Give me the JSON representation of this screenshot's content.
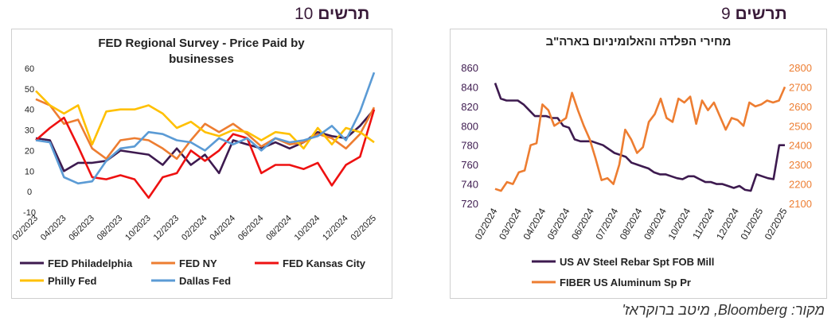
{
  "page": {
    "left_number": "10",
    "left_label": "תרשים",
    "right_number": "9",
    "right_label": "תרשים",
    "source": "מקור: Bloomberg, מיטב ברוקראז'"
  },
  "colors": {
    "philadelphia": "#3d1a4f",
    "ny": "#ed7d31",
    "kansas": "#ee1111",
    "philly": "#ffc000",
    "dallas": "#5b9bd5",
    "steel": "#3d1a4f",
    "aluminum": "#ed7d31",
    "axis_left": "#3d1a4f",
    "axis_right": "#ed7d31"
  },
  "chart_data": [
    {
      "type": "line",
      "title": "FED Regional Survey - Price Paid by businesses",
      "title_lines": [
        "FED Regional Survey - Price Paid by",
        "businesses"
      ],
      "ylim": [
        -10,
        60
      ],
      "yticks": [
        -10,
        0,
        10,
        20,
        30,
        40,
        50,
        60
      ],
      "grid": false,
      "legend_position": "bottom",
      "x_tick_labels": [
        "02/2023",
        "04/2023",
        "06/2023",
        "08/2023",
        "10/2023",
        "12/2023",
        "02/2024",
        "04/2024",
        "06/2024",
        "08/2024",
        "10/2024",
        "12/2024",
        "02/2025"
      ],
      "x": [
        "02/2023",
        "03/2023",
        "04/2023",
        "05/2023",
        "06/2023",
        "07/2023",
        "08/2023",
        "09/2023",
        "10/2023",
        "11/2023",
        "12/2023",
        "01/2024",
        "02/2024",
        "03/2024",
        "04/2024",
        "05/2024",
        "06/2024",
        "07/2024",
        "08/2024",
        "09/2024",
        "10/2024",
        "11/2024",
        "12/2024",
        "01/2025",
        "02/2025"
      ],
      "series": [
        {
          "name": "FED Philadelphia",
          "color_key": "philadelphia",
          "values": [
            26,
            25,
            10,
            14,
            14,
            15,
            20,
            19,
            18,
            13,
            21,
            13,
            18,
            9,
            25,
            23,
            21,
            24,
            21,
            24,
            29,
            27,
            26,
            32,
            40
          ]
        },
        {
          "name": "FED NY",
          "color_key": "ny",
          "values": [
            45,
            42,
            33,
            35,
            21,
            16,
            25,
            26,
            25,
            21,
            16,
            25,
            33,
            29,
            33,
            28,
            22,
            26,
            23,
            24,
            28,
            26,
            21,
            28,
            41
          ]
        },
        {
          "name": "FED Kansas City",
          "color_key": "kansas",
          "values": [
            25,
            31,
            36,
            22,
            7,
            6,
            8,
            6,
            -3,
            7,
            9,
            20,
            15,
            20,
            28,
            26,
            9,
            13,
            13,
            11,
            14,
            3,
            13,
            17,
            40
          ]
        },
        {
          "name": "Philly Fed",
          "color_key": "philly",
          "values": [
            49,
            42,
            38,
            42,
            23,
            39,
            40,
            40,
            42,
            38,
            31,
            34,
            29,
            27,
            30,
            29,
            25,
            29,
            28,
            21,
            31,
            23,
            31,
            29,
            24
          ]
        },
        {
          "name": "Dallas Fed",
          "color_key": "dallas",
          "values": [
            25,
            24,
            7,
            4,
            5,
            15,
            21,
            22,
            29,
            28,
            25,
            24,
            20,
            26,
            23,
            26,
            20,
            26,
            24,
            25,
            27,
            32,
            25,
            39,
            58
          ]
        }
      ]
    },
    {
      "type": "line",
      "title": "מחירי הפלדה והאלומיניום בארה\"ב",
      "y_left_ticks": [
        720,
        740,
        760,
        780,
        800,
        820,
        840,
        860
      ],
      "ylim_left": [
        720,
        860
      ],
      "y_right_ticks": [
        2100,
        2200,
        2300,
        2400,
        2500,
        2600,
        2700,
        2800
      ],
      "ylim_right": [
        2100,
        2800
      ],
      "grid": false,
      "legend_position": "bottom",
      "x_tick_labels": [
        "02/2024",
        "03/2024",
        "04/2024",
        "05/2024",
        "06/2024",
        "07/2024",
        "08/2024",
        "09/2024",
        "10/2024",
        "11/2024",
        "12/2024",
        "01/2025",
        "02/2025"
      ],
      "series": [
        {
          "name": "US AV Steel Rebar Spt FOB Mill",
          "axis": "left",
          "color_key": "steel",
          "values": [
            844,
            828,
            826,
            826,
            826,
            822,
            816,
            810,
            810,
            810,
            808,
            808,
            800,
            798,
            786,
            784,
            784,
            784,
            782,
            780,
            776,
            772,
            770,
            768,
            762,
            760,
            758,
            756,
            752,
            750,
            750,
            748,
            746,
            745,
            748,
            748,
            745,
            742,
            742,
            740,
            740,
            738,
            736,
            738,
            734,
            733,
            750,
            748,
            746,
            745,
            780,
            780
          ]
        },
        {
          "name": "FIBER US Aluminum Sp Pr",
          "axis": "right",
          "color_key": "aluminum",
          "values": [
            2175,
            2165,
            2210,
            2200,
            2260,
            2270,
            2400,
            2410,
            2610,
            2580,
            2500,
            2520,
            2540,
            2670,
            2580,
            2500,
            2430,
            2330,
            2220,
            2230,
            2200,
            2300,
            2480,
            2430,
            2360,
            2390,
            2520,
            2560,
            2640,
            2540,
            2520,
            2640,
            2620,
            2650,
            2510,
            2630,
            2580,
            2620,
            2550,
            2480,
            2540,
            2530,
            2500,
            2620,
            2600,
            2610,
            2630,
            2620,
            2630,
            2700
          ]
        }
      ]
    }
  ]
}
